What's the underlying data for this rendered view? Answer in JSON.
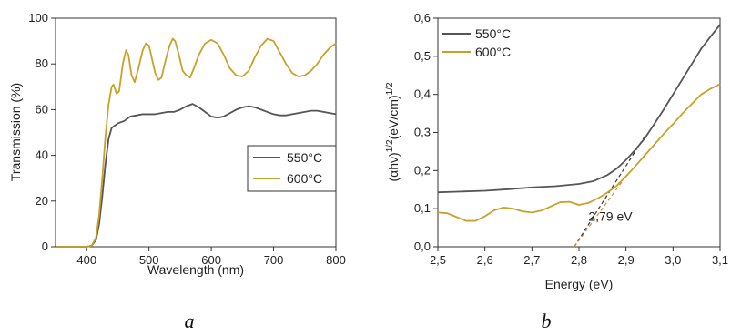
{
  "colors": {
    "series_550": "#555555",
    "series_600": "#c8a12a",
    "fit_550": "#333333",
    "fit_600": "#d08a2a"
  },
  "chart_data": [
    {
      "panel_label": "a",
      "type": "line",
      "xlabel": "Wavelength (nm)",
      "ylabel": "Transmission (%)",
      "xlim": [
        350,
        800
      ],
      "ylim": [
        0,
        100
      ],
      "xticks": [
        400,
        500,
        600,
        700,
        800
      ],
      "yticks": [
        0,
        20,
        40,
        60,
        80,
        100
      ],
      "xtick_labels": [
        "400",
        "500",
        "600",
        "700",
        "800"
      ],
      "ytick_labels": [
        "0",
        "20",
        "40",
        "60",
        "80",
        "100"
      ],
      "grid": false,
      "legend_position": "center-right",
      "series": [
        {
          "name": "550°C",
          "color": "#555555",
          "points": [
            [
              350,
              0
            ],
            [
              400,
              0
            ],
            [
              408,
              0.5
            ],
            [
              415,
              3
            ],
            [
              420,
              10
            ],
            [
              425,
              22
            ],
            [
              430,
              36
            ],
            [
              435,
              47
            ],
            [
              440,
              52
            ],
            [
              450,
              54
            ],
            [
              460,
              55
            ],
            [
              470,
              57
            ],
            [
              480,
              57.5
            ],
            [
              490,
              58
            ],
            [
              500,
              58
            ],
            [
              510,
              58
            ],
            [
              520,
              58.5
            ],
            [
              530,
              59
            ],
            [
              540,
              59
            ],
            [
              550,
              60
            ],
            [
              560,
              61.5
            ],
            [
              570,
              62.5
            ],
            [
              580,
              61
            ],
            [
              590,
              59
            ],
            [
              600,
              57
            ],
            [
              610,
              56.5
            ],
            [
              620,
              57
            ],
            [
              630,
              58.5
            ],
            [
              640,
              60
            ],
            [
              650,
              61
            ],
            [
              660,
              61.5
            ],
            [
              670,
              61
            ],
            [
              680,
              60
            ],
            [
              690,
              59
            ],
            [
              700,
              58
            ],
            [
              710,
              57.5
            ],
            [
              720,
              57.5
            ],
            [
              730,
              58
            ],
            [
              740,
              58.5
            ],
            [
              750,
              59
            ],
            [
              760,
              59.5
            ],
            [
              770,
              59.5
            ],
            [
              780,
              59
            ],
            [
              790,
              58.5
            ],
            [
              800,
              58
            ]
          ]
        },
        {
          "name": "600°C",
          "color": "#c8a12a",
          "points": [
            [
              350,
              0
            ],
            [
              400,
              0
            ],
            [
              408,
              0.5
            ],
            [
              415,
              4
            ],
            [
              420,
              14
            ],
            [
              425,
              30
            ],
            [
              430,
              48
            ],
            [
              435,
              62
            ],
            [
              440,
              70
            ],
            [
              443,
              71
            ],
            [
              448,
              67
            ],
            [
              452,
              68
            ],
            [
              458,
              80
            ],
            [
              463,
              86
            ],
            [
              467,
              84
            ],
            [
              472,
              75
            ],
            [
              477,
              72
            ],
            [
              483,
              78
            ],
            [
              490,
              86
            ],
            [
              495,
              89
            ],
            [
              500,
              88
            ],
            [
              505,
              82
            ],
            [
              510,
              76
            ],
            [
              515,
              73
            ],
            [
              520,
              74
            ],
            [
              527,
              82
            ],
            [
              533,
              88
            ],
            [
              538,
              91
            ],
            [
              542,
              90
            ],
            [
              548,
              84
            ],
            [
              554,
              77
            ],
            [
              560,
              75
            ],
            [
              566,
              74
            ],
            [
              572,
              78
            ],
            [
              580,
              84
            ],
            [
              590,
              89
            ],
            [
              600,
              90.5
            ],
            [
              610,
              89
            ],
            [
              620,
              84
            ],
            [
              630,
              78
            ],
            [
              640,
              75
            ],
            [
              650,
              74.5
            ],
            [
              660,
              77
            ],
            [
              670,
              83
            ],
            [
              680,
              88
            ],
            [
              690,
              91
            ],
            [
              700,
              90
            ],
            [
              710,
              85
            ],
            [
              720,
              80
            ],
            [
              730,
              76
            ],
            [
              740,
              74.5
            ],
            [
              750,
              75
            ],
            [
              760,
              77
            ],
            [
              770,
              80
            ],
            [
              780,
              84
            ],
            [
              790,
              87
            ],
            [
              800,
              89
            ]
          ]
        }
      ]
    },
    {
      "panel_label": "b",
      "type": "line",
      "xlabel": "Energy (eV)",
      "ylabel_parts": [
        "(αhν)",
        "1/2",
        "(eV/cm)",
        "1/2"
      ],
      "xlim": [
        2.5,
        3.1
      ],
      "ylim": [
        0.0,
        0.6
      ],
      "xticks": [
        2.5,
        2.6,
        2.7,
        2.8,
        2.9,
        3.0,
        3.1
      ],
      "yticks": [
        0.0,
        0.1,
        0.2,
        0.3,
        0.4,
        0.5,
        0.6
      ],
      "xtick_labels": [
        "2,5",
        "2,6",
        "2,7",
        "2,8",
        "2,9",
        "3,0",
        "3,1"
      ],
      "ytick_labels": [
        "0,0",
        "0,1",
        "0,2",
        "0,3",
        "0,4",
        "0,5",
        "0,6"
      ],
      "grid": false,
      "legend_position": "top-left",
      "annotation": {
        "text": "2,79 eV",
        "x": 2.82,
        "y": 0.068
      },
      "series": [
        {
          "name": "550°C",
          "color": "#555555",
          "points": [
            [
              2.5,
              0.143
            ],
            [
              2.55,
              0.145
            ],
            [
              2.6,
              0.147
            ],
            [
              2.65,
              0.151
            ],
            [
              2.7,
              0.156
            ],
            [
              2.75,
              0.159
            ],
            [
              2.8,
              0.165
            ],
            [
              2.83,
              0.172
            ],
            [
              2.86,
              0.188
            ],
            [
              2.88,
              0.205
            ],
            [
              2.9,
              0.228
            ],
            [
              2.92,
              0.255
            ],
            [
              2.94,
              0.285
            ],
            [
              2.96,
              0.322
            ],
            [
              2.98,
              0.36
            ],
            [
              3.0,
              0.4
            ],
            [
              3.02,
              0.44
            ],
            [
              3.04,
              0.48
            ],
            [
              3.06,
              0.52
            ],
            [
              3.08,
              0.552
            ],
            [
              3.1,
              0.583
            ]
          ]
        },
        {
          "name": "600°C",
          "color": "#c8a12a",
          "points": [
            [
              2.5,
              0.09
            ],
            [
              2.52,
              0.088
            ],
            [
              2.54,
              0.078
            ],
            [
              2.56,
              0.068
            ],
            [
              2.58,
              0.068
            ],
            [
              2.6,
              0.08
            ],
            [
              2.62,
              0.096
            ],
            [
              2.64,
              0.103
            ],
            [
              2.66,
              0.1
            ],
            [
              2.68,
              0.093
            ],
            [
              2.7,
              0.09
            ],
            [
              2.72,
              0.095
            ],
            [
              2.74,
              0.106
            ],
            [
              2.76,
              0.117
            ],
            [
              2.78,
              0.118
            ],
            [
              2.8,
              0.11
            ],
            [
              2.82,
              0.115
            ],
            [
              2.84,
              0.127
            ],
            [
              2.86,
              0.142
            ],
            [
              2.88,
              0.16
            ],
            [
              2.9,
              0.185
            ],
            [
              2.92,
              0.212
            ],
            [
              2.94,
              0.24
            ],
            [
              2.96,
              0.268
            ],
            [
              2.98,
              0.296
            ],
            [
              3.0,
              0.322
            ],
            [
              3.02,
              0.35
            ],
            [
              3.04,
              0.375
            ],
            [
              3.06,
              0.4
            ],
            [
              3.08,
              0.415
            ],
            [
              3.1,
              0.427
            ]
          ]
        }
      ],
      "fit_lines": [
        {
          "color": "#333333",
          "points": [
            [
              2.79,
              0.0
            ],
            [
              2.94,
              0.29
            ]
          ]
        },
        {
          "color": "#d08a2a",
          "points": [
            [
              2.79,
              0.0
            ],
            [
              2.9,
              0.185
            ]
          ]
        }
      ]
    }
  ]
}
